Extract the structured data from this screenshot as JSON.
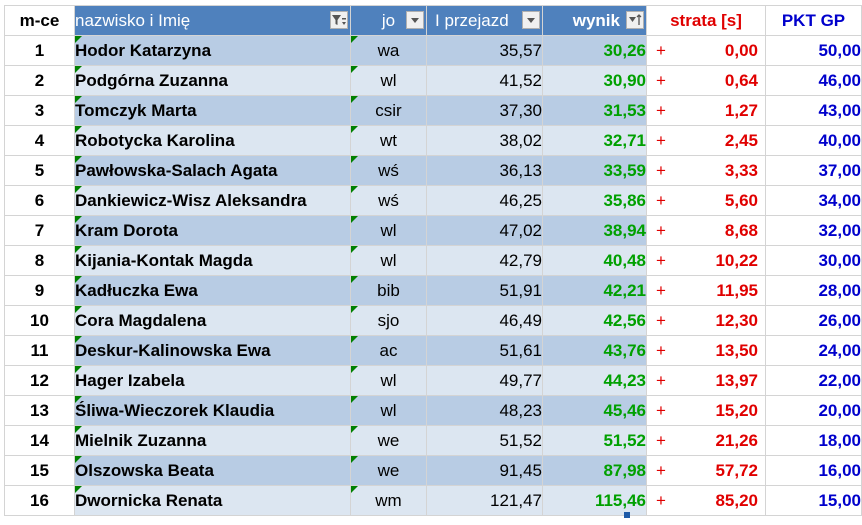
{
  "headers": {
    "place": "m-ce",
    "name": "nazwisko i Imię",
    "club": "jo",
    "time": "I przejazd",
    "result": "wynik",
    "loss": "strata [s]",
    "points": "PKT GP"
  },
  "filters": {
    "name": "filter-active-icon",
    "club": "dropdown-arrow-icon",
    "time": "dropdown-arrow-icon",
    "result": "sort-ascending-icon"
  },
  "colors": {
    "header_fill": "#4f81bd",
    "band_dark": "#b8cce4",
    "band_light": "#dce6f1",
    "result_green": "#00a000",
    "loss_red": "#e00000",
    "points_blue": "#0000cc",
    "comment_marker": "#008000"
  },
  "rows": [
    {
      "place": "1",
      "name": "Hodor Katarzyna",
      "club": "wa",
      "time": "35,57",
      "result": "30,26",
      "sign": "+",
      "loss": "0,00",
      "points": "50,00"
    },
    {
      "place": "2",
      "name": "Podgórna Zuzanna",
      "club": "wl",
      "time": "41,52",
      "result": "30,90",
      "sign": "+",
      "loss": "0,64",
      "points": "46,00"
    },
    {
      "place": "3",
      "name": "Tomczyk Marta",
      "club": "csir",
      "time": "37,30",
      "result": "31,53",
      "sign": "+",
      "loss": "1,27",
      "points": "43,00"
    },
    {
      "place": "4",
      "name": "Robotycka Karolina",
      "club": "wt",
      "time": "38,02",
      "result": "32,71",
      "sign": "+",
      "loss": "2,45",
      "points": "40,00"
    },
    {
      "place": "5",
      "name": "Pawłowska-Salach Agata",
      "club": "wś",
      "time": "36,13",
      "result": "33,59",
      "sign": "+",
      "loss": "3,33",
      "points": "37,00"
    },
    {
      "place": "6",
      "name": "Dankiewicz-Wisz Aleksandra",
      "club": "wś",
      "time": "46,25",
      "result": "35,86",
      "sign": "+",
      "loss": "5,60",
      "points": "34,00"
    },
    {
      "place": "7",
      "name": "Kram Dorota",
      "club": "wl",
      "time": "47,02",
      "result": "38,94",
      "sign": "+",
      "loss": "8,68",
      "points": "32,00"
    },
    {
      "place": "8",
      "name": "Kijania-Kontak Magda",
      "club": "wl",
      "time": "42,79",
      "result": "40,48",
      "sign": "+",
      "loss": "10,22",
      "points": "30,00"
    },
    {
      "place": "9",
      "name": "Kadłuczka Ewa",
      "club": "bib",
      "time": "51,91",
      "result": "42,21",
      "sign": "+",
      "loss": "11,95",
      "points": "28,00"
    },
    {
      "place": "10",
      "name": "Cora Magdalena",
      "club": "sjo",
      "time": "46,49",
      "result": "42,56",
      "sign": "+",
      "loss": "12,30",
      "points": "26,00"
    },
    {
      "place": "11",
      "name": "Deskur-Kalinowska Ewa",
      "club": "ac",
      "time": "51,61",
      "result": "43,76",
      "sign": "+",
      "loss": "13,50",
      "points": "24,00"
    },
    {
      "place": "12",
      "name": "Hager Izabela",
      "club": "wl",
      "time": "49,77",
      "result": "44,23",
      "sign": "+",
      "loss": "13,97",
      "points": "22,00"
    },
    {
      "place": "13",
      "name": "Śliwa-Wieczorek Klaudia",
      "club": "wl",
      "time": "48,23",
      "result": "45,46",
      "sign": "+",
      "loss": "15,20",
      "points": "20,00"
    },
    {
      "place": "14",
      "name": "Mielnik Zuzanna",
      "club": "we",
      "time": "51,52",
      "result": "51,52",
      "sign": "+",
      "loss": "21,26",
      "points": "18,00"
    },
    {
      "place": "15",
      "name": "Olszowska Beata",
      "club": "we",
      "time": "91,45",
      "result": "87,98",
      "sign": "+",
      "loss": "57,72",
      "points": "16,00"
    },
    {
      "place": "16",
      "name": "Dwornicka Renata",
      "club": "wm",
      "time": "121,47",
      "result": "115,46",
      "sign": "+",
      "loss": "85,20",
      "points": "15,00"
    }
  ]
}
